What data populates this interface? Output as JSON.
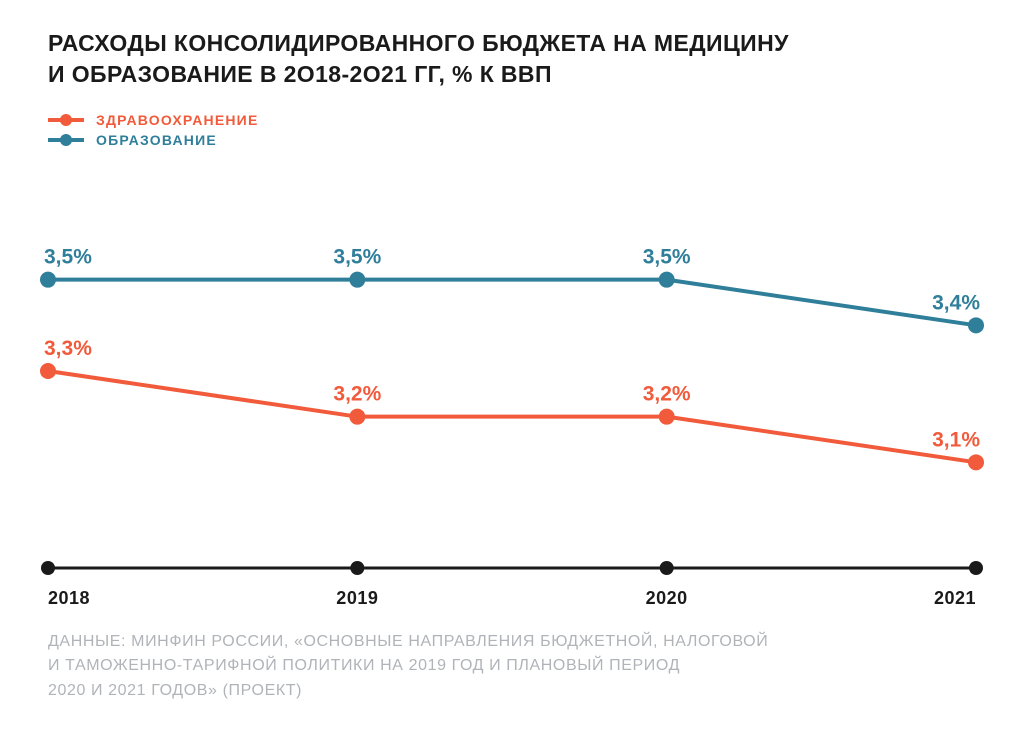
{
  "chart": {
    "type": "line",
    "title_line1": "РАСХОДЫ КОНСОЛИДИРОВАННОГО БЮДЖЕТА НА МЕДИЦИНУ",
    "title_line2": "И ОБРАЗОВАНИЕ В 2О18-2О21 ГГ, % К ВВП",
    "title_fontsize": 23,
    "title_color": "#1a1a1a",
    "background_color": "#ffffff",
    "legend": {
      "items": [
        {
          "label": "ЗДРАВООХРАНЕНИЕ",
          "color": "#f15a3a"
        },
        {
          "label": "ОБРАЗОВАНИЕ",
          "color": "#2f7e9a"
        }
      ],
      "fontsize": 14
    },
    "categories": [
      "2018",
      "2019",
      "2020",
      "2021"
    ],
    "ylim": [
      3.0,
      3.6
    ],
    "series": {
      "health": {
        "color": "#f15a3a",
        "values": [
          3.3,
          3.2,
          3.2,
          3.1
        ],
        "labels": [
          "3,3%",
          "3,2%",
          "3,2%",
          "3,1%"
        ],
        "marker_radius": 8,
        "line_width": 4
      },
      "education": {
        "color": "#2f7e9a",
        "values": [
          3.5,
          3.5,
          3.5,
          3.4
        ],
        "labels": [
          "3,5%",
          "3,5%",
          "3,5%",
          "3,4%"
        ],
        "marker_radius": 8,
        "line_width": 4
      }
    },
    "value_label_fontsize": 21,
    "axis": {
      "color": "#1a1a1a",
      "line_width": 3,
      "tick_radius": 7,
      "label_fontsize": 18,
      "label_color": "#1a1a1a"
    },
    "footer": {
      "line1": "ДАННЫЕ: МИНФИН РОССИИ, «ОСНОВНЫЕ НАПРАВЛЕНИЯ БЮДЖЕТНОЙ, НАЛОГОВОЙ",
      "line2": "И ТАМОЖЕННО-ТАРИФНОЙ ПОЛИТИКИ НА 2019 ГОД И ПЛАНОВЫЙ ПЕРИОД",
      "line3": "2020 И 2021 ГОДОВ» (ПРОЕКТ)",
      "fontsize": 16,
      "color": "#b0b4b8"
    }
  }
}
